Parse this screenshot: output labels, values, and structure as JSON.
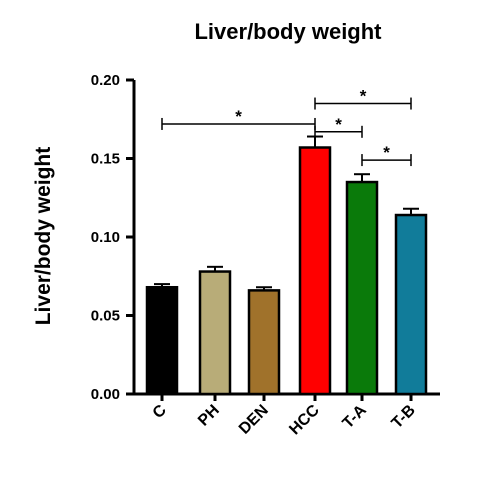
{
  "chart_data": {
    "type": "bar",
    "title": "Liver/body weight",
    "ylabel": "Liver/body weight",
    "xlabel": "",
    "ylim": [
      0,
      0.2
    ],
    "yticks": [
      "0.00",
      "0.05",
      "0.10",
      "0.15",
      "0.20"
    ],
    "categories": [
      "C",
      "PH",
      "DEN",
      "HCC",
      "T-A",
      "T-B"
    ],
    "values": [
      0.068,
      0.078,
      0.066,
      0.157,
      0.135,
      0.114
    ],
    "errors": [
      0.002,
      0.003,
      0.002,
      0.007,
      0.005,
      0.004
    ],
    "colors": [
      "#000000",
      "#b8ac78",
      "#a0722b",
      "#ff0000",
      "#0a7a0a",
      "#117c9a"
    ],
    "significance": [
      {
        "from": "C",
        "to": "HCC",
        "label": "*",
        "y": 0.172
      },
      {
        "from": "HCC",
        "to": "T-A",
        "label": "*",
        "y": 0.167
      },
      {
        "from": "HCC",
        "to": "T-B",
        "label": "*",
        "y": 0.185
      },
      {
        "from": "T-A",
        "to": "T-B",
        "label": "*",
        "y": 0.149
      }
    ]
  }
}
